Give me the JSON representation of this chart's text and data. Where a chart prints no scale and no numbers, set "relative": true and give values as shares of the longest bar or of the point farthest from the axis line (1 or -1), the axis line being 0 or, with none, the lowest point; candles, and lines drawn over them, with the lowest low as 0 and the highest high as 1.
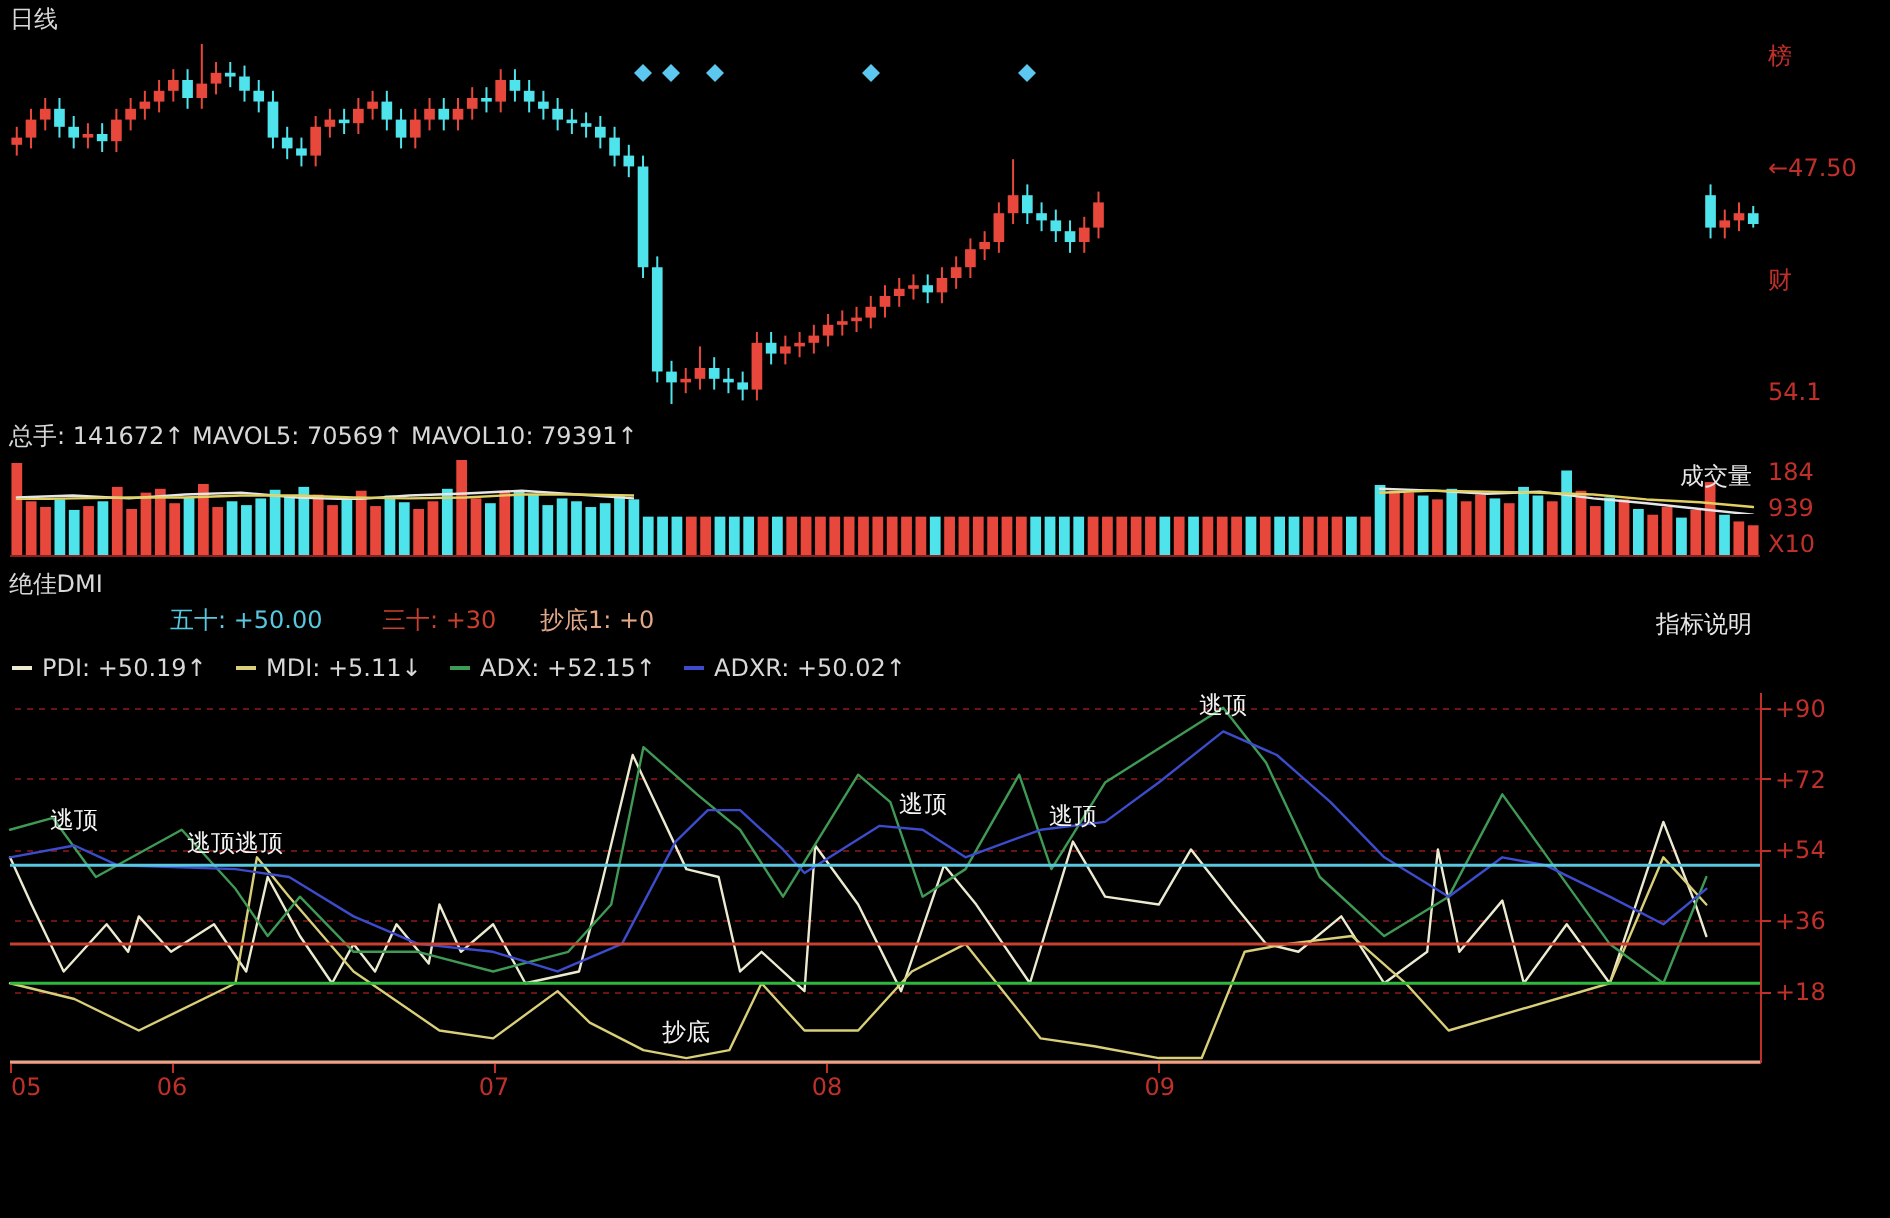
{
  "chart_data": [
    {
      "type": "candlestick",
      "title": "日线",
      "relative": true,
      "categories": [
        null,
        null,
        null,
        null,
        null,
        null,
        null,
        null,
        null,
        null,
        null,
        null,
        null,
        null,
        null,
        null,
        null,
        null,
        null,
        null,
        null,
        null,
        null,
        null,
        null,
        null,
        null,
        null,
        null,
        null,
        null,
        null,
        null,
        null,
        null,
        null,
        null,
        null,
        null,
        null,
        null,
        null,
        null,
        null,
        null,
        null,
        null,
        null,
        null,
        null,
        null,
        null,
        null,
        null,
        null,
        null,
        null,
        null,
        null,
        null,
        null,
        null,
        null,
        null,
        null,
        null,
        null,
        null,
        null,
        null,
        null,
        null,
        null,
        null,
        null,
        null,
        null,
        null,
        null,
        null,
        null,
        null,
        null,
        null,
        null,
        null,
        null,
        null,
        null,
        null,
        null,
        null,
        null,
        null,
        null,
        null,
        null,
        null,
        null,
        null,
        null,
        null,
        null,
        null,
        null,
        null,
        null,
        null,
        null,
        null,
        null,
        null,
        null,
        null,
        null,
        null,
        null,
        null,
        null,
        null,
        null,
        null,
        null
      ],
      "ohlc": [
        [
          0.72,
          0.77,
          0.69,
          0.74
        ],
        [
          0.74,
          0.82,
          0.71,
          0.79
        ],
        [
          0.79,
          0.85,
          0.76,
          0.82
        ],
        [
          0.82,
          0.85,
          0.74,
          0.77
        ],
        [
          0.77,
          0.8,
          0.71,
          0.74
        ],
        [
          0.74,
          0.78,
          0.71,
          0.75
        ],
        [
          0.75,
          0.78,
          0.7,
          0.73
        ],
        [
          0.73,
          0.82,
          0.7,
          0.79
        ],
        [
          0.79,
          0.85,
          0.76,
          0.82
        ],
        [
          0.82,
          0.87,
          0.79,
          0.84
        ],
        [
          0.84,
          0.9,
          0.81,
          0.87
        ],
        [
          0.87,
          0.93,
          0.84,
          0.9
        ],
        [
          0.9,
          0.93,
          0.82,
          0.85
        ],
        [
          0.85,
          1.0,
          0.82,
          0.89
        ],
        [
          0.89,
          0.95,
          0.86,
          0.92
        ],
        [
          0.92,
          0.95,
          0.88,
          0.91
        ],
        [
          0.91,
          0.94,
          0.84,
          0.87
        ],
        [
          0.87,
          0.9,
          0.81,
          0.84
        ],
        [
          0.84,
          0.87,
          0.71,
          0.74
        ],
        [
          0.74,
          0.77,
          0.68,
          0.71
        ],
        [
          0.71,
          0.74,
          0.66,
          0.69
        ],
        [
          0.69,
          0.8,
          0.66,
          0.77
        ],
        [
          0.77,
          0.82,
          0.74,
          0.79
        ],
        [
          0.79,
          0.82,
          0.75,
          0.78
        ],
        [
          0.78,
          0.85,
          0.75,
          0.82
        ],
        [
          0.82,
          0.87,
          0.79,
          0.84
        ],
        [
          0.84,
          0.87,
          0.76,
          0.79
        ],
        [
          0.79,
          0.82,
          0.71,
          0.74
        ],
        [
          0.74,
          0.82,
          0.71,
          0.79
        ],
        [
          0.79,
          0.85,
          0.76,
          0.82
        ],
        [
          0.82,
          0.85,
          0.76,
          0.79
        ],
        [
          0.79,
          0.85,
          0.76,
          0.82
        ],
        [
          0.82,
          0.88,
          0.79,
          0.85
        ],
        [
          0.85,
          0.88,
          0.81,
          0.84
        ],
        [
          0.84,
          0.93,
          0.81,
          0.9
        ],
        [
          0.9,
          0.93,
          0.84,
          0.87
        ],
        [
          0.87,
          0.9,
          0.81,
          0.84
        ],
        [
          0.84,
          0.87,
          0.79,
          0.82
        ],
        [
          0.82,
          0.85,
          0.76,
          0.79
        ],
        [
          0.79,
          0.82,
          0.75,
          0.78
        ],
        [
          0.78,
          0.81,
          0.74,
          0.77
        ],
        [
          0.77,
          0.8,
          0.71,
          0.74
        ],
        [
          0.74,
          0.77,
          0.66,
          0.69
        ],
        [
          0.69,
          0.72,
          0.63,
          0.66
        ],
        [
          0.66,
          0.69,
          0.35,
          0.38
        ],
        [
          0.38,
          0.41,
          0.06,
          0.09
        ],
        [
          0.09,
          0.12,
          0,
          0.06
        ],
        [
          0.06,
          0.1,
          0.03,
          0.07
        ],
        [
          0.07,
          0.16,
          0.04,
          0.1
        ],
        [
          0.1,
          0.13,
          0.04,
          0.07
        ],
        [
          0.07,
          0.1,
          0.03,
          0.06
        ],
        [
          0.06,
          0.09,
          0.01,
          0.04
        ],
        [
          0.04,
          0.2,
          0.01,
          0.17
        ],
        [
          0.17,
          0.2,
          0.11,
          0.14
        ],
        [
          0.14,
          0.19,
          0.11,
          0.16
        ],
        [
          0.16,
          0.2,
          0.13,
          0.17
        ],
        [
          0.17,
          0.22,
          0.14,
          0.19
        ],
        [
          0.19,
          0.25,
          0.16,
          0.22
        ],
        [
          0.22,
          0.26,
          0.19,
          0.23
        ],
        [
          0.23,
          0.27,
          0.2,
          0.24
        ],
        [
          0.24,
          0.3,
          0.21,
          0.27
        ],
        [
          0.27,
          0.33,
          0.24,
          0.3
        ],
        [
          0.3,
          0.35,
          0.27,
          0.32
        ],
        [
          0.32,
          0.36,
          0.29,
          0.33
        ],
        [
          0.33,
          0.36,
          0.28,
          0.31
        ],
        [
          0.31,
          0.38,
          0.28,
          0.35
        ],
        [
          0.35,
          0.41,
          0.32,
          0.38
        ],
        [
          0.38,
          0.46,
          0.35,
          0.43
        ],
        [
          0.43,
          0.48,
          0.4,
          0.45
        ],
        [
          0.45,
          0.56,
          0.42,
          0.53
        ],
        [
          0.53,
          0.68,
          0.5,
          0.58
        ],
        [
          0.58,
          0.61,
          0.5,
          0.53
        ],
        [
          0.53,
          0.56,
          0.48,
          0.51
        ],
        [
          0.51,
          0.54,
          0.45,
          0.48
        ],
        [
          0.48,
          0.51,
          0.42,
          0.45
        ],
        [
          0.45,
          0.52,
          0.42,
          0.49
        ],
        [
          0.49,
          0.59,
          0.46,
          0.56
        ],
        null,
        null,
        null,
        null,
        null,
        null,
        null,
        null,
        null,
        null,
        null,
        null,
        null,
        null,
        null,
        null,
        null,
        null,
        null,
        null,
        null,
        null,
        null,
        null,
        null,
        null,
        null,
        null,
        null,
        null,
        null,
        null,
        null,
        null,
        null,
        null,
        null,
        null,
        null,
        null,
        null,
        null,
        [
          0.58,
          0.61,
          0.46,
          0.49
        ],
        [
          0.49,
          0.54,
          0.46,
          0.51
        ],
        [
          0.51,
          0.56,
          0.48,
          0.53
        ],
        [
          0.53,
          0.55,
          0.49,
          0.5
        ]
      ],
      "annotations": [
        "榜",
        "←47.50",
        "财",
        "54.1"
      ]
    },
    {
      "type": "bar",
      "title": "总手: 141672↑ MAVOL5: 70569↑ MAVOL10: 79391↑",
      "subtitle": "成交量",
      "relative": true,
      "annotations": [
        "184",
        "939",
        "X10"
      ],
      "categories": [
        null,
        null,
        null,
        null,
        null,
        null,
        null,
        null,
        null,
        null,
        null,
        null,
        null,
        null,
        null,
        null,
        null,
        null,
        null,
        null,
        null,
        null,
        null,
        null,
        null,
        null,
        null,
        null,
        null,
        null,
        null,
        null,
        null,
        null,
        null,
        null,
        null,
        null,
        null,
        null,
        null,
        null,
        null,
        null,
        null,
        null,
        null,
        null,
        null,
        null,
        null,
        null,
        null,
        null,
        null,
        null,
        null,
        null,
        null,
        null,
        null,
        null,
        null,
        null,
        null,
        null,
        null,
        null,
        null,
        null,
        null,
        null,
        null,
        null,
        null,
        null,
        null,
        null,
        null,
        null,
        null,
        null,
        null,
        null,
        null,
        null,
        null,
        null,
        null,
        null,
        null,
        null,
        null,
        null,
        null,
        null,
        null,
        null,
        null,
        null,
        null,
        null,
        null,
        null,
        null,
        null,
        null,
        null,
        null,
        null,
        null,
        null,
        null,
        null,
        null,
        null,
        null,
        null,
        null,
        null,
        null,
        null
      ],
      "values": [
        0.97,
        0.57,
        0.51,
        0.59,
        0.48,
        0.52,
        0.57,
        0.72,
        0.49,
        0.66,
        0.7,
        0.55,
        0.61,
        0.75,
        0.51,
        0.57,
        0.53,
        0.6,
        0.69,
        0.63,
        0.72,
        0.64,
        0.53,
        0.59,
        0.68,
        0.52,
        0.63,
        0.56,
        0.49,
        0.57,
        0.7,
        1,
        0.6,
        0.55,
        0.67,
        0.68,
        0.64,
        0.53,
        0.6,
        0.57,
        0.51,
        0.55,
        0.63,
        0.59,
        0.41,
        0.41,
        0.41,
        0.41,
        0.41,
        0.41,
        0.41,
        0.41,
        0.41,
        0.41,
        0.41,
        0.41,
        0.41,
        0.41,
        0.41,
        0.41,
        0.41,
        0.41,
        0.41,
        0.41,
        0.41,
        0.41,
        0.41,
        0.41,
        0.41,
        0.41,
        0.41,
        0.41,
        0.41,
        0.41,
        0.41,
        0.41,
        0.41,
        0.41,
        0.41,
        0.41,
        0.41,
        0.41,
        0.41,
        0.41,
        0.41,
        0.41,
        0.41,
        0.41,
        0.41,
        0.41,
        0.41,
        0.41,
        0.41,
        0.41,
        0.41,
        0.74,
        0.68,
        0.66,
        0.63,
        0.59,
        0.7,
        0.57,
        0.64,
        0.6,
        0.55,
        0.72,
        0.63,
        0.57,
        0.89,
        0.68,
        0.52,
        0.61,
        0.59,
        0.49,
        0.43,
        0.51,
        0.4,
        0.48,
        0.77,
        0.43,
        0.36,
        0.32
      ],
      "colors": [
        "#e8483c",
        "#e8483c",
        "#e8483c",
        "#4fe3ec",
        "#4fe3ec",
        "#e8483c",
        "#4fe3ec",
        "#e8483c",
        "#e8483c",
        "#e8483c",
        "#e8483c",
        "#e8483c",
        "#4fe3ec",
        "#e8483c",
        "#e8483c",
        "#4fe3ec",
        "#4fe3ec",
        "#4fe3ec",
        "#4fe3ec",
        "#4fe3ec",
        "#4fe3ec",
        "#e8483c",
        "#e8483c",
        "#4fe3ec",
        "#e8483c",
        "#e8483c",
        "#4fe3ec",
        "#4fe3ec",
        "#e8483c",
        "#e8483c",
        "#4fe3ec",
        "#e8483c",
        "#e8483c",
        "#4fe3ec",
        "#e8483c",
        "#4fe3ec",
        "#4fe3ec",
        "#4fe3ec",
        "#4fe3ec",
        "#4fe3ec",
        "#4fe3ec",
        "#4fe3ec",
        "#4fe3ec",
        "#4fe3ec",
        "#4fe3ec",
        "#4fe3ec",
        "#4fe3ec",
        "#e8483c",
        "#e8483c",
        "#4fe3ec",
        "#4fe3ec",
        "#4fe3ec",
        "#e8483c",
        "#4fe3ec",
        "#e8483c",
        "#e8483c",
        "#e8483c",
        "#e8483c",
        "#e8483c",
        "#e8483c",
        "#e8483c",
        "#e8483c",
        "#e8483c",
        "#e8483c",
        "#4fe3ec",
        "#e8483c",
        "#e8483c",
        "#e8483c",
        "#e8483c",
        "#e8483c",
        "#e8483c",
        "#4fe3ec",
        "#4fe3ec",
        "#4fe3ec",
        "#4fe3ec",
        "#e8483c",
        "#e8483c",
        "#e8483c",
        "#e8483c",
        "#e8483c",
        "#4fe3ec",
        "#e8483c",
        "#4fe3ec",
        "#e8483c",
        "#e8483c",
        "#e8483c",
        "#4fe3ec",
        "#e8483c",
        "#4fe3ec",
        "#4fe3ec",
        "#e8483c",
        "#e8483c",
        "#e8483c",
        "#4fe3ec",
        "#e8483c",
        "#4fe3ec",
        "#e8483c",
        "#e8483c",
        "#4fe3ec",
        "#e8483c",
        "#4fe3ec",
        "#e8483c",
        "#e8483c",
        "#4fe3ec",
        "#e8483c",
        "#4fe3ec",
        "#4fe3ec",
        "#e8483c",
        "#4fe3ec",
        "#e8483c",
        "#e8483c",
        "#4fe3ec",
        "#e8483c",
        "#4fe3ec",
        "#e8483c",
        "#e8483c",
        "#4fe3ec",
        "#e8483c",
        "#e8483c",
        "#4fe3ec",
        "#e8483c",
        "#e8483c"
      ]
    },
    {
      "type": "line",
      "relative": true,
      "categories": [
        null,
        null,
        null,
        null,
        null,
        null,
        null,
        null,
        null,
        null,
        null,
        null
      ],
      "series": [
        {
          "color": "#e6e6e6",
          "values": [
            0.22,
            0.44,
            0.11,
            0.56,
            0.78,
            0.22,
            0,
            0.44,
            0.67,
            1,
            0.56,
            0.11
          ]
        },
        {
          "color": "#e0d060",
          "values": [
            0,
            0.11,
            0.22,
            0.22,
            0.44,
            0.44,
            0.22,
            0.11,
            0.22,
            0.56,
            0.56,
            0.44
          ]
        }
      ]
    },
    {
      "type": "line",
      "relative": true,
      "categories": [
        null,
        null,
        null,
        null,
        null,
        null,
        null,
        null
      ],
      "series": [
        {
          "color": "#e6e6e6",
          "values": [
            1,
            0.93,
            0.81,
            0.89,
            0.63,
            0.44,
            0.22,
            0
          ]
        },
        {
          "color": "#e0d060",
          "values": [
            0.85,
            0.93,
            0.89,
            0.85,
            0.78,
            0.59,
            0.48,
            0.3
          ]
        }
      ]
    },
    {
      "type": "line",
      "title": "绝佳DMI",
      "subtitle": "指标说明",
      "xlim": [
        "--05-17",
        "--10-27"
      ],
      "ylim": [
        0,
        94
      ],
      "xticks": [
        {
          "value": "--05-17",
          "label": "05"
        },
        {
          "value": "--06-01",
          "label": "06"
        },
        {
          "value": "--07-01",
          "label": "07"
        },
        {
          "value": "--08-01",
          "label": "08"
        },
        {
          "value": "--09-01",
          "label": "09"
        }
      ],
      "yticks": [
        {
          "value": 18,
          "label": "+18"
        },
        {
          "value": 36,
          "label": "+36"
        },
        {
          "value": 54,
          "label": "+54"
        },
        {
          "value": 72,
          "label": "+72"
        },
        {
          "value": 90,
          "label": "+90"
        }
      ],
      "grid": "y",
      "legend": "top",
      "series": [
        {
          "name": "PDI: +50.19↑",
          "color": "#ecebd0",
          "x": [
            "--05-17",
            "--05-19",
            "--05-22",
            "--05-26",
            "--05-28",
            "--05-29",
            "--06-01",
            "--06-05",
            "--06-08",
            "--06-10",
            "--06-11",
            "--06-13",
            "--06-16",
            "--06-18",
            "--06-20",
            "--06-22",
            "--06-25",
            "--06-26",
            "--06-28",
            "--07-01",
            "--07-04",
            "--07-09",
            "--07-11",
            "--07-14",
            "--07-19",
            "--07-22",
            "--07-24",
            "--07-26",
            "--07-30",
            "--07-31",
            "--08-04",
            "--08-08",
            "--08-12",
            "--08-15",
            "--08-20",
            "--08-24",
            "--08-27",
            "--09-01",
            "--09-04",
            "--09-08",
            "--09-11",
            "--09-14",
            "--09-18",
            "--09-22",
            "--09-26",
            "--09-27",
            "--09-29",
            "--10-03",
            "--10-05",
            "--10-09",
            "--10-13",
            "--10-18",
            "--10-21",
            "--10-22"
          ],
          "values": [
            52,
            40,
            23,
            35,
            28,
            37,
            28,
            35,
            23,
            47,
            42,
            32,
            20,
            30,
            23,
            35,
            25,
            40,
            28,
            35,
            20,
            23,
            44,
            78,
            49,
            47,
            23,
            28,
            18,
            55,
            40,
            18,
            50,
            40,
            20,
            56,
            42,
            40,
            54,
            40,
            30,
            28,
            37,
            20,
            28,
            54,
            28,
            41,
            20,
            35,
            20,
            61,
            40,
            32
          ]
        },
        {
          "name": "MDI: +5.11↓",
          "color": "#d8cf78",
          "x": [
            "--05-17",
            "--05-23",
            "--05-29",
            "--06-07",
            "--06-09",
            "--06-12",
            "--06-18",
            "--06-26",
            "--07-01",
            "--07-07",
            "--07-10",
            "--07-15",
            "--07-19",
            "--07-23",
            "--07-26",
            "--07-30",
            "--08-04",
            "--08-09",
            "--08-14",
            "--08-21",
            "--08-26",
            "--09-01",
            "--09-05",
            "--09-09",
            "--09-13",
            "--09-19",
            "--09-24",
            "--09-28",
            "--10-13",
            "--10-18",
            "--10-22"
          ],
          "values": [
            20,
            16,
            8,
            20,
            52,
            42,
            23,
            8,
            6,
            18,
            10,
            3,
            1,
            3,
            20,
            8,
            8,
            23,
            30,
            6,
            4,
            1,
            1,
            28,
            30,
            32,
            20,
            8,
            20,
            52,
            40
          ]
        },
        {
          "name": "ADX: +52.15↑",
          "color": "#3f9a55",
          "x": [
            "--05-17",
            "--05-21",
            "--05-25",
            "--06-02",
            "--06-07",
            "--06-10",
            "--06-13",
            "--06-18",
            "--06-24",
            "--07-01",
            "--07-08",
            "--07-12",
            "--07-15",
            "--07-20",
            "--07-24",
            "--07-28",
            "--08-04",
            "--08-07",
            "--08-10",
            "--08-14",
            "--08-19",
            "--08-22",
            "--08-27",
            "--09-07",
            "--09-11",
            "--09-16",
            "--09-22",
            "--09-28",
            "--10-03",
            "--10-08",
            "--10-13",
            "--10-18",
            "--10-22"
          ],
          "values": [
            59,
            62,
            47,
            59,
            44,
            32,
            42,
            28,
            28,
            23,
            28,
            40,
            80,
            68,
            59,
            42,
            73,
            66,
            42,
            49,
            73,
            49,
            71,
            90,
            76,
            47,
            32,
            42,
            68,
            49,
            30,
            20,
            47
          ]
        },
        {
          "name": "ADXR: +50.02↑",
          "color": "#3c4ccc",
          "x": [
            "--05-17",
            "--05-23",
            "--05-27",
            "--06-07",
            "--06-12",
            "--06-18",
            "--06-24",
            "--07-01",
            "--07-07",
            "--07-13",
            "--07-18",
            "--07-21",
            "--07-24",
            "--07-28",
            "--07-30",
            "--08-06",
            "--08-10",
            "--08-14",
            "--08-21",
            "--08-27",
            "--09-01",
            "--09-07",
            "--09-12",
            "--09-17",
            "--09-22",
            "--09-28",
            "--10-03",
            "--10-07",
            "--10-13",
            "--10-18",
            "--10-22"
          ],
          "values": [
            52,
            55,
            50,
            49,
            47,
            37,
            30,
            28,
            23,
            30,
            56,
            64,
            64,
            54,
            48,
            60,
            59,
            52,
            59,
            61,
            71,
            84,
            78,
            66,
            52,
            42,
            52,
            50,
            42,
            35,
            44
          ]
        }
      ],
      "ref_lines": [
        {
          "axis": "y",
          "value": 50,
          "label": "五十: +50.00",
          "color": "#58c8e0"
        },
        {
          "axis": "y",
          "value": 30,
          "label": "三十: +30",
          "color": "#c8402e"
        },
        {
          "axis": "y",
          "value": 0,
          "label": "抄底1: +0",
          "color": "#e0a888"
        },
        {
          "axis": "y",
          "value": 20,
          "color": "#2fb83c"
        }
      ],
      "annotations": [
        {
          "text": "逃顶",
          "x": "--05-23",
          "y": 55
        },
        {
          "text": "逃顶逃顶",
          "x": "--06-07",
          "y": 49
        },
        {
          "text": "逃顶",
          "x": "--08-10",
          "y": 59
        },
        {
          "text": "逃顶",
          "x": "--08-24",
          "y": 56
        },
        {
          "text": "逃顶",
          "x": "--09-07",
          "y": 84
        },
        {
          "text": "抄底",
          "x": "--07-19",
          "y": 1
        }
      ]
    }
  ]
}
